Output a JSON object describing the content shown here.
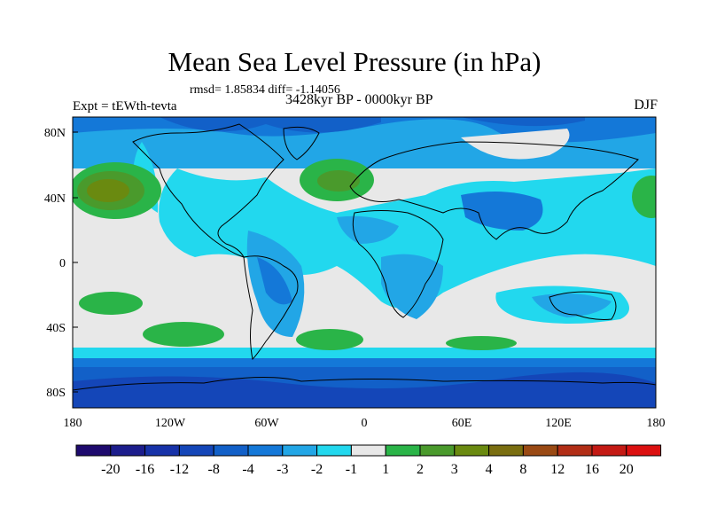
{
  "title": "Mean Sea Level Pressure (in hPa)",
  "stats": "rmsd= 1.85834 diff= -1.14056",
  "experiment": "Expt = tEWth-tevta",
  "period": "3428kyr BP - 0000kyr BP",
  "season": "DJF",
  "lat_ticks": [
    "80N",
    "40N",
    "0",
    "40S",
    "80S"
  ],
  "lon_ticks": [
    "180",
    "120W",
    "60W",
    "0",
    "60E",
    "120E",
    "180"
  ],
  "legend": {
    "labels": [
      "-20",
      "-16",
      "-12",
      "-8",
      "-4",
      "-3",
      "-2",
      "-1",
      "1",
      "2",
      "3",
      "4",
      "8",
      "12",
      "16",
      "20"
    ],
    "colors": [
      "#1e0a6e",
      "#1c1d8c",
      "#1732a8",
      "#1446b8",
      "#1260c8",
      "#1478d8",
      "#22a6e6",
      "#22d8ee",
      "#e8e8e8",
      "#2ab448",
      "#4a9a2c",
      "#6a8a10",
      "#7a6e10",
      "#9a4a14",
      "#b22e16",
      "#c41a14",
      "#dc1010"
    ]
  },
  "colors": {
    "land_outline": "#000000",
    "background": "#e8e8e8"
  }
}
